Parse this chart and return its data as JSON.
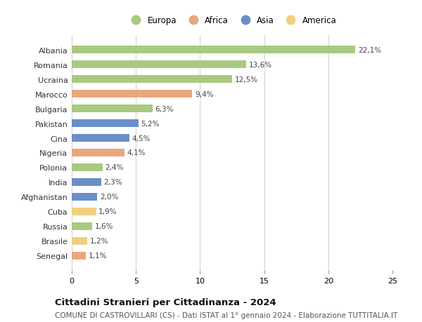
{
  "countries": [
    "Albania",
    "Romania",
    "Ucraina",
    "Marocco",
    "Bulgaria",
    "Pakistan",
    "Cina",
    "Nigeria",
    "Polonia",
    "India",
    "Afghanistan",
    "Cuba",
    "Russia",
    "Brasile",
    "Senegal"
  ],
  "values": [
    22.1,
    13.6,
    12.5,
    9.4,
    6.3,
    5.2,
    4.5,
    4.1,
    2.4,
    2.3,
    2.0,
    1.9,
    1.6,
    1.2,
    1.1
  ],
  "labels": [
    "22,1%",
    "13,6%",
    "12,5%",
    "9,4%",
    "6,3%",
    "5,2%",
    "4,5%",
    "4,1%",
    "2,4%",
    "2,3%",
    "2,0%",
    "1,9%",
    "1,6%",
    "1,2%",
    "1,1%"
  ],
  "continents": [
    "Europa",
    "Europa",
    "Europa",
    "Africa",
    "Europa",
    "Asia",
    "Asia",
    "Africa",
    "Europa",
    "Asia",
    "Asia",
    "America",
    "Europa",
    "America",
    "Africa"
  ],
  "colors": {
    "Europa": "#a8c97f",
    "Africa": "#e8a87c",
    "Asia": "#6a8fc8",
    "America": "#f0d080"
  },
  "xlim": [
    0,
    25
  ],
  "xticks": [
    0,
    5,
    10,
    15,
    20,
    25
  ],
  "title": "Cittadini Stranieri per Cittadinanza - 2024",
  "subtitle": "COMUNE DI CASTROVILLARI (CS) - Dati ISTAT al 1° gennaio 2024 - Elaborazione TUTTITALIA.IT",
  "background_color": "#ffffff",
  "grid_color": "#d0d0d0",
  "legend_order": [
    "Europa",
    "Africa",
    "Asia",
    "America"
  ],
  "bar_height": 0.55,
  "label_fontsize": 7.5,
  "tick_fontsize": 8.0,
  "label_color": "#444444",
  "title_fontsize": 9.5,
  "subtitle_fontsize": 7.5
}
